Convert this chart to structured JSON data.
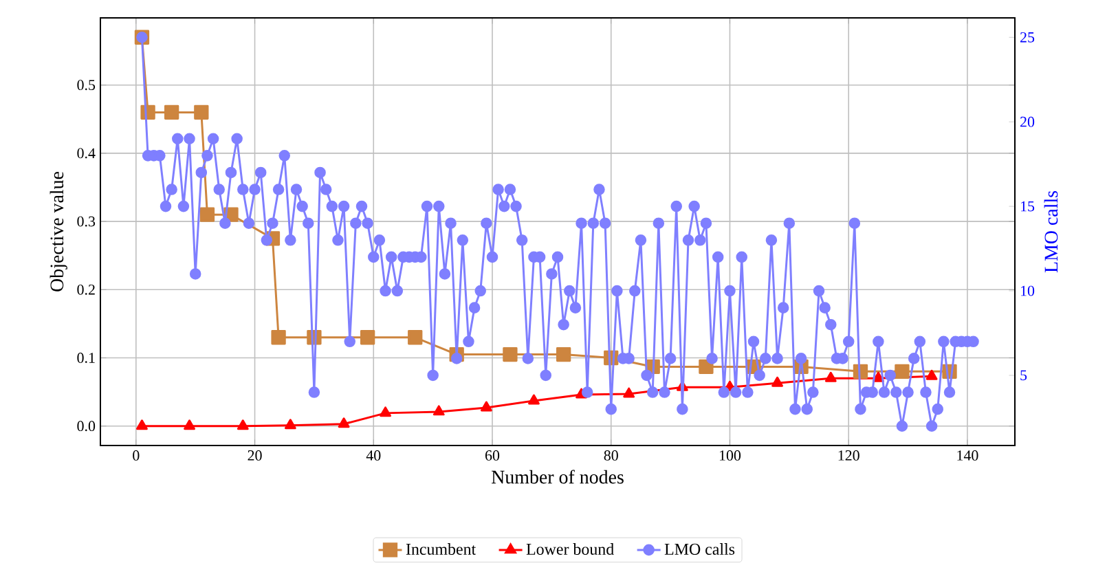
{
  "chart_data": {
    "type": "line",
    "xlabel": "Number of nodes",
    "ylabel": "Objective value",
    "y2label": "LMO calls",
    "xlim": [
      -6,
      148
    ],
    "ylim": [
      -0.0285,
      0.5985
    ],
    "y2lim": [
      0.85,
      26.15
    ],
    "xticks": [
      0,
      20,
      40,
      60,
      80,
      100,
      120,
      140
    ],
    "yticks": [
      {
        "value": 0,
        "label": "0.0"
      },
      {
        "value": 0.1,
        "label": "0.1"
      },
      {
        "value": 0.2,
        "label": "0.2"
      },
      {
        "value": 0.3,
        "label": "0.3"
      },
      {
        "value": 0.4,
        "label": "0.4"
      },
      {
        "value": 0.5,
        "label": "0.5"
      }
    ],
    "y2ticks": [
      5,
      10,
      15,
      20,
      25
    ],
    "grid": true,
    "legend": "bottom",
    "series": [
      {
        "name": "Incumbent",
        "color": "#cd853f",
        "marker": "square",
        "x": [
          1,
          2,
          6,
          11,
          12,
          16,
          23,
          24,
          30,
          39,
          47,
          54,
          63,
          72,
          80,
          87,
          96,
          104,
          112,
          122,
          129,
          137
        ],
        "values": [
          0.57,
          0.46,
          0.46,
          0.46,
          0.31,
          0.31,
          0.275,
          0.13,
          0.13,
          0.13,
          0.13,
          0.105,
          0.105,
          0.105,
          0.1,
          0.087,
          0.087,
          0.087,
          0.087,
          0.08,
          0.08,
          0.08
        ]
      },
      {
        "name": "Lower bound",
        "color": "#ff0000",
        "marker": "triangle",
        "x": [
          1,
          9,
          18,
          26,
          35,
          42,
          51,
          59,
          67,
          75,
          83,
          92,
          100,
          108,
          117,
          125,
          134
        ],
        "values": [
          0,
          0,
          0,
          0.001,
          0.003,
          0.019,
          0.021,
          0.027,
          0.037,
          0.046,
          0.047,
          0.057,
          0.057,
          0.063,
          0.07,
          0.07,
          0.073
        ]
      },
      {
        "name": "LMO calls",
        "color": "#7f7fff",
        "marker": "circle",
        "axis": "y2",
        "x": [
          1,
          2,
          3,
          4,
          5,
          6,
          7,
          8,
          9,
          10,
          11,
          12,
          13,
          14,
          15,
          16,
          17,
          18,
          19,
          20,
          21,
          22,
          23,
          24,
          25,
          26,
          27,
          28,
          29,
          30,
          31,
          32,
          33,
          34,
          35,
          36,
          37,
          38,
          39,
          40,
          41,
          42,
          43,
          44,
          45,
          46,
          47,
          48,
          49,
          50,
          51,
          52,
          53,
          54,
          55,
          56,
          57,
          58,
          59,
          60,
          61,
          62,
          63,
          64,
          65,
          66,
          67,
          68,
          69,
          70,
          71,
          72,
          73,
          74,
          75,
          76,
          77,
          78,
          79,
          80,
          81,
          82,
          83,
          84,
          85,
          86,
          87,
          88,
          89,
          90,
          91,
          92,
          93,
          94,
          95,
          96,
          97,
          98,
          99,
          100,
          101,
          102,
          103,
          104,
          105,
          106,
          107,
          108,
          109,
          110,
          111,
          112,
          113,
          114,
          115,
          116,
          117,
          118,
          119,
          120,
          121,
          122,
          123,
          124,
          125,
          126,
          127,
          128,
          129,
          130,
          131,
          132,
          133,
          134,
          135,
          136,
          137,
          138,
          139,
          140,
          141
        ],
        "values": [
          25,
          18,
          18,
          18,
          15,
          16,
          19,
          15,
          19,
          11,
          17,
          18,
          19,
          16,
          14,
          17,
          19,
          16,
          14,
          16,
          17,
          13,
          14,
          16,
          18,
          13,
          16,
          15,
          14,
          4,
          17,
          16,
          15,
          13,
          15,
          7,
          14,
          15,
          14,
          12,
          13,
          10,
          12,
          10,
          12,
          12,
          12,
          12,
          15,
          5,
          15,
          11,
          14,
          6,
          13,
          7,
          9,
          10,
          14,
          12,
          16,
          15,
          16,
          15,
          13,
          6,
          12,
          12,
          5,
          11,
          12,
          8,
          10,
          9,
          14,
          4,
          14,
          16,
          14,
          3,
          10,
          6,
          6,
          10,
          13,
          5,
          4,
          14,
          4,
          6,
          15,
          3,
          13,
          15,
          13,
          14,
          6,
          12,
          4,
          10,
          4,
          12,
          4,
          7,
          5,
          6,
          13,
          6,
          9,
          14,
          3,
          6,
          3,
          4,
          10,
          9,
          8,
          6,
          6,
          7,
          14,
          3,
          4,
          4,
          7,
          4,
          5,
          4,
          2,
          4,
          6,
          7,
          4,
          2,
          3,
          7,
          4,
          7,
          7,
          7,
          7
        ]
      }
    ]
  }
}
